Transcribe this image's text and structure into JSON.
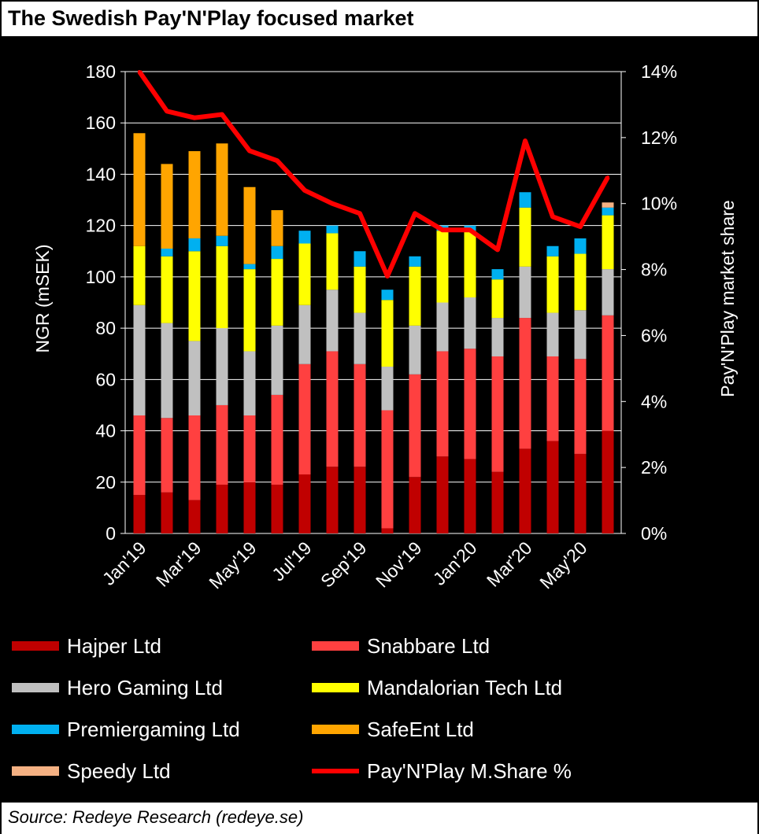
{
  "title": "The Swedish Pay'N'Play focused market",
  "source": "Source: Redeye Research (redeye.se)",
  "chart_data": {
    "type": "bar",
    "stacked": true,
    "categories": [
      "Jan'19",
      "Feb'19",
      "Mar'19",
      "Apr'19",
      "May'19",
      "Jun'19",
      "Jul'19",
      "Aug'19",
      "Sep'19",
      "Oct'19",
      "Nov'19",
      "Dec'19",
      "Jan'20",
      "Feb'20",
      "Mar'20",
      "Apr'20",
      "May'20",
      "Jun'20"
    ],
    "x_tick_labels": [
      "Jan'19",
      "Mar'19",
      "May'19",
      "Jul'19",
      "Sep'19",
      "Nov'19",
      "Jan'20",
      "Mar'20",
      "May'20"
    ],
    "ylabel": "NGR (mSEK)",
    "ylim": [
      0,
      180
    ],
    "yticks": [
      "0",
      "20",
      "40",
      "60",
      "80",
      "100",
      "120",
      "140",
      "160",
      "180"
    ],
    "y2label": "Pay'N'Play  market share",
    "y2lim": [
      0,
      14
    ],
    "y2ticks": [
      "0%",
      "2%",
      "4%",
      "6%",
      "8%",
      "10%",
      "12%",
      "14%"
    ],
    "background": "#000000",
    "text_color": "#ffffff",
    "gridlines": true,
    "series": [
      {
        "name": "Hajper Ltd",
        "color": "#c00000",
        "values": [
          15,
          16,
          13,
          19,
          20,
          19,
          23,
          26,
          26,
          2,
          22,
          30,
          29,
          24,
          33,
          36,
          31,
          40
        ]
      },
      {
        "name": "Snabbare Ltd",
        "color": "#ff4040",
        "values": [
          31,
          29,
          33,
          31,
          26,
          35,
          43,
          45,
          40,
          46,
          40,
          41,
          43,
          45,
          51,
          33,
          37,
          45
        ]
      },
      {
        "name": "Hero Gaming Ltd",
        "color": "#c0c0c0",
        "values": [
          43,
          37,
          29,
          30,
          25,
          27,
          23,
          24,
          20,
          17,
          19,
          19,
          20,
          15,
          20,
          17,
          19,
          18
        ]
      },
      {
        "name": "Mandalorian Tech Ltd",
        "color": "#ffff00",
        "values": [
          23,
          26,
          35,
          32,
          32,
          26,
          24,
          22,
          18,
          26,
          23,
          28,
          26,
          15,
          23,
          22,
          22,
          21
        ]
      },
      {
        "name": "Premiergaming Ltd",
        "color": "#00b0f0",
        "values": [
          0,
          3,
          5,
          4,
          2,
          5,
          5,
          3,
          6,
          4,
          4,
          2,
          2,
          4,
          6,
          4,
          6,
          3
        ]
      },
      {
        "name": "SafeEnt Ltd",
        "color": "#ffa500",
        "values": [
          44,
          33,
          34,
          36,
          30,
          14,
          0,
          0,
          0,
          0,
          0,
          0,
          0,
          0,
          0,
          0,
          0,
          0
        ]
      },
      {
        "name": "Speedy Ltd",
        "color": "#f4b183",
        "values": [
          0,
          0,
          0,
          0,
          0,
          0,
          0,
          0,
          0,
          0,
          0,
          0,
          0,
          0,
          0,
          0,
          0,
          2
        ]
      }
    ],
    "line_series": {
      "name": "Pay'N'Play M.Share %",
      "color": "#ff0000",
      "axis": "right",
      "values": [
        14.0,
        12.8,
        12.6,
        12.7,
        11.6,
        11.3,
        10.4,
        10.0,
        9.7,
        7.8,
        9.7,
        9.2,
        9.2,
        8.6,
        11.9,
        9.6,
        9.3,
        10.8
      ]
    },
    "legend": {
      "position": "bottom",
      "columns": 2,
      "items": [
        "Hajper Ltd",
        "Snabbare Ltd",
        "Hero Gaming Ltd",
        "Mandalorian Tech Ltd",
        "Premiergaming Ltd",
        "SafeEnt Ltd",
        "Speedy Ltd",
        "Pay'N'Play M.Share %"
      ]
    }
  }
}
